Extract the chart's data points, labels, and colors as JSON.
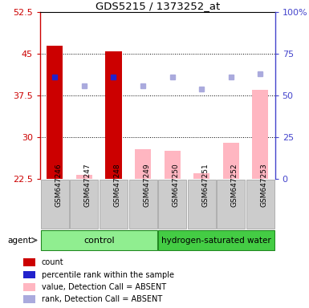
{
  "title": "GDS5215 / 1373252_at",
  "samples": [
    "GSM647246",
    "GSM647247",
    "GSM647248",
    "GSM647249",
    "GSM647250",
    "GSM647251",
    "GSM647252",
    "GSM647253"
  ],
  "red_bars": [
    46.5,
    null,
    45.5,
    null,
    null,
    null,
    null,
    null
  ],
  "pink_bars": [
    null,
    23.2,
    null,
    27.8,
    27.5,
    23.5,
    29.0,
    38.5
  ],
  "blue_dots_pct": [
    61,
    null,
    61,
    null,
    null,
    null,
    null,
    null
  ],
  "lavender_dots_pct": [
    null,
    56,
    null,
    56,
    61,
    54,
    61,
    63
  ],
  "ylim_left": [
    22.5,
    52.5
  ],
  "ylim_right": [
    0,
    100
  ],
  "yticks_left": [
    22.5,
    30.0,
    37.5,
    45.0,
    52.5
  ],
  "yticks_right": [
    0,
    25,
    50,
    75,
    100
  ],
  "ytick_labels_left": [
    "22.5",
    "30",
    "37.5",
    "45",
    "52.5"
  ],
  "ytick_labels_right": [
    "0",
    "25",
    "50",
    "75",
    "100%"
  ],
  "left_axis_color": "#CC0000",
  "right_axis_color": "#4444CC",
  "bar_width": 0.55,
  "control_color": "#90EE90",
  "h2_color": "#44CC44",
  "legend_items": [
    {
      "label": "count",
      "color": "#CC0000"
    },
    {
      "label": "percentile rank within the sample",
      "color": "#2222CC"
    },
    {
      "label": "value, Detection Call = ABSENT",
      "color": "#FFB6C1"
    },
    {
      "label": "rank, Detection Call = ABSENT",
      "color": "#AAAADD"
    }
  ]
}
